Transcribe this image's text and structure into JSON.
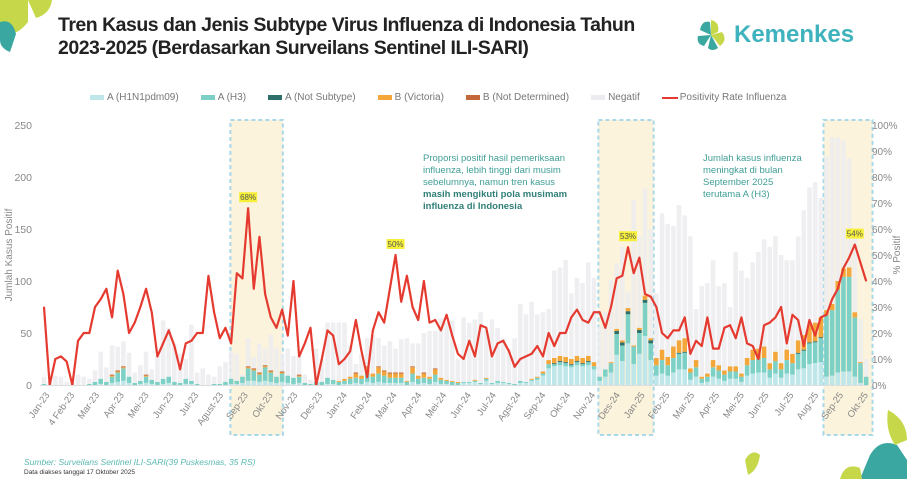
{
  "header": {
    "title_line1": "Tren Kasus dan Jenis Subtype Virus Influenza di Indonesia Tahun",
    "title_line2": "2023-2025 (Berdasarkan Surveilans Sentinel ILI-SARI)",
    "logo_text": "Kemenkes"
  },
  "colors": {
    "h1n1": "#bfe7ea",
    "h3": "#7dd0c5",
    "ans": "#2e6f6c",
    "bvic": "#f3a63a",
    "bnd": "#c2683a",
    "negatif": "#ececf0",
    "positivity": "#e53a2f",
    "highlight": "#fbf3dc",
    "highlight_border": "#a9d8ea",
    "label_bg": "#f6f03a"
  },
  "notes": {
    "left_normal": "Proporsi positif hasil pemeriksaan influenza, lebih tinggi dari musim sebelumnya, namun tren kasus",
    "left_bold": "masih mengikuti pola musimam influenza di Indonesia",
    "right": "Jumlah kasus influenza meningkat di bulan September 2025 terutama A (H3)"
  },
  "footer": {
    "source": "Sumber: Surveilans Sentinel ILI-SARI(39 Puskesmas, 35 RS)",
    "accessed": "Data diakses tanggal 17 Oktober 2025"
  },
  "chart_data": {
    "type": "bar",
    "stacked": true,
    "title": "",
    "xlabel": "",
    "ylabel": "Jumlah Kasus Positif",
    "y2label": "% Positif",
    "ylim": [
      0,
      250
    ],
    "y2lim": [
      0,
      100
    ],
    "yticks": [
      "0",
      "50",
      "100",
      "150",
      "200",
      "250"
    ],
    "y2ticks": [
      "0%",
      "10%",
      "20%",
      "30%",
      "40%",
      "50%",
      "60%",
      "70%",
      "80%",
      "90%",
      "100%"
    ],
    "grid": false,
    "legend_position": "top",
    "month_labels": [
      "Jan-23",
      "4 Feb-23",
      "Mar-23",
      "Apr-23",
      "Mei-23",
      "Jun-23",
      "Jul-23",
      "Agust-23",
      "Sep-23",
      "Okt-23",
      "Nov-23",
      "Des-23",
      "Jan-24",
      "Feb-24",
      "Mar-24",
      "Apr-24",
      "Mei-24",
      "Jun-24",
      "Jul-24",
      "Agst-24",
      "Sep-24",
      "Okt-24",
      "Nov-24",
      "Des-24",
      "Jan-25",
      "Feb-25",
      "Mar-25",
      "Apr-25",
      "Mei-25",
      "Jun-25",
      "Jul-25",
      "Aug-25",
      "Sep-25",
      "Okt-25"
    ],
    "peak_labels": [
      {
        "week": 36,
        "text": "68%"
      },
      {
        "week": 62,
        "text": "50%"
      },
      {
        "week": 103,
        "text": "53%"
      },
      {
        "week": 143,
        "text": "54%"
      }
    ],
    "series": [
      {
        "name": "A (H1N1pdm09)",
        "type": "bar",
        "values": [
          0,
          0,
          0,
          0,
          0,
          0,
          0,
          0,
          0,
          0,
          1,
          0,
          2,
          3,
          4,
          2,
          0,
          1,
          2,
          1,
          0,
          1,
          2,
          0,
          0,
          1,
          1,
          0,
          0,
          0,
          0,
          0,
          0,
          1,
          1,
          2,
          4,
          4,
          3,
          4,
          3,
          2,
          3,
          2,
          1,
          2,
          0,
          0,
          0,
          0,
          1,
          1,
          0,
          1,
          1,
          2,
          1,
          3,
          2,
          3,
          2,
          2,
          2,
          2,
          0,
          3,
          1,
          2,
          1,
          3,
          1,
          1,
          0,
          0,
          2,
          2,
          3,
          1,
          4,
          1,
          2,
          2,
          1,
          0,
          2,
          2,
          4,
          5,
          9,
          16,
          18,
          19,
          18,
          17,
          19,
          18,
          19,
          15,
          4,
          8,
          12,
          29,
          23,
          40,
          20,
          30,
          47,
          24,
          9,
          11,
          9,
          12,
          15,
          15,
          5,
          8,
          2,
          3,
          8,
          6,
          4,
          6,
          6,
          3,
          9,
          11,
          12,
          12,
          7,
          11,
          7,
          11,
          10,
          15,
          16,
          20,
          21,
          22,
          8,
          9,
          12,
          13,
          13,
          8,
          2,
          0
        ]
      },
      {
        "name": "A (H3)",
        "type": "bar",
        "values": [
          1,
          0,
          0,
          0,
          0,
          0,
          0,
          0,
          1,
          3,
          5,
          3,
          6,
          9,
          12,
          6,
          2,
          3,
          6,
          4,
          3,
          5,
          6,
          3,
          2,
          5,
          3,
          1,
          0,
          0,
          1,
          1,
          3,
          5,
          3,
          6,
          12,
          10,
          7,
          13,
          9,
          6,
          8,
          7,
          6,
          6,
          2,
          1,
          3,
          3,
          6,
          4,
          3,
          3,
          5,
          5,
          5,
          8,
          6,
          8,
          7,
          5,
          5,
          5,
          3,
          8,
          5,
          5,
          5,
          7,
          4,
          3,
          3,
          2,
          1,
          1,
          1,
          1,
          2,
          1,
          2,
          1,
          1,
          1,
          2,
          1,
          1,
          2,
          2,
          4,
          2,
          3,
          3,
          2,
          3,
          2,
          3,
          3,
          4,
          7,
          9,
          20,
          15,
          28,
          17,
          20,
          32,
          16,
          10,
          13,
          10,
          14,
          15,
          16,
          7,
          9,
          4,
          5,
          9,
          8,
          6,
          7,
          7,
          5,
          10,
          13,
          13,
          14,
          8,
          12,
          8,
          13,
          11,
          15,
          17,
          20,
          20,
          23,
          59,
          63,
          80,
          91,
          91,
          57,
          19,
          8
        ]
      },
      {
        "name": "A (Not Subtype)",
        "type": "bar",
        "values": [
          0,
          0,
          0,
          0,
          0,
          0,
          0,
          0,
          0,
          0,
          0,
          0,
          0,
          0,
          0,
          0,
          0,
          0,
          0,
          0,
          0,
          0,
          0,
          0,
          0,
          0,
          0,
          0,
          0,
          0,
          0,
          0,
          0,
          0,
          0,
          0,
          0,
          0,
          0,
          0,
          0,
          0,
          0,
          0,
          0,
          0,
          0,
          0,
          0,
          0,
          0,
          0,
          0,
          0,
          0,
          0,
          0,
          0,
          0,
          0,
          0,
          0,
          0,
          0,
          0,
          0,
          0,
          0,
          0,
          0,
          0,
          0,
          0,
          0,
          0,
          0,
          0,
          0,
          0,
          0,
          0,
          0,
          0,
          0,
          0,
          0,
          0,
          0,
          0,
          0,
          1,
          1,
          1,
          1,
          1,
          1,
          1,
          0,
          0,
          0,
          0,
          3,
          3,
          3,
          0,
          3,
          3,
          3,
          0,
          0,
          0,
          0,
          1,
          1,
          0,
          0,
          0,
          0,
          0,
          0,
          0,
          0,
          0,
          0,
          0,
          0,
          0,
          0,
          0,
          0,
          0,
          0,
          0,
          1,
          1,
          1,
          1,
          1,
          0,
          0,
          0,
          0,
          0,
          0,
          0,
          0
        ]
      },
      {
        "name": "B (Victoria)",
        "type": "bar",
        "values": [
          0,
          0,
          0,
          0,
          0,
          0,
          0,
          0,
          0,
          0,
          0,
          0,
          1,
          1,
          1,
          0,
          0,
          0,
          1,
          0,
          0,
          0,
          0,
          0,
          0,
          0,
          0,
          0,
          0,
          0,
          0,
          0,
          0,
          0,
          0,
          0,
          1,
          1,
          1,
          1,
          1,
          0,
          1,
          0,
          0,
          1,
          0,
          0,
          0,
          0,
          0,
          0,
          1,
          2,
          2,
          4,
          3,
          6,
          3,
          6,
          4,
          4,
          4,
          4,
          1,
          6,
          3,
          4,
          2,
          5,
          2,
          1,
          1,
          1,
          0,
          0,
          1,
          0,
          1,
          0,
          0,
          0,
          0,
          0,
          0,
          0,
          1,
          1,
          2,
          4,
          5,
          5,
          5,
          5,
          5,
          5,
          5,
          4,
          0,
          0,
          1,
          2,
          2,
          3,
          1,
          2,
          4,
          2,
          7,
          10,
          8,
          11,
          12,
          13,
          4,
          7,
          2,
          3,
          7,
          5,
          4,
          5,
          5,
          3,
          7,
          10,
          10,
          11,
          6,
          9,
          6,
          10,
          9,
          12,
          14,
          17,
          18,
          19,
          5,
          6,
          8,
          8,
          9,
          5,
          1,
          0
        ]
      },
      {
        "name": "B (Not Determined)",
        "type": "bar",
        "values": [
          0,
          0,
          0,
          0,
          0,
          0,
          0,
          0,
          0,
          0,
          0,
          0,
          1,
          1,
          1,
          0,
          0,
          0,
          1,
          0,
          0,
          0,
          0,
          0,
          0,
          0,
          0,
          0,
          0,
          0,
          0,
          0,
          0,
          0,
          0,
          0,
          1,
          1,
          1,
          1,
          1,
          0,
          1,
          0,
          0,
          1,
          0,
          0,
          0,
          0,
          0,
          0,
          0,
          0,
          0,
          1,
          0,
          1,
          0,
          1,
          1,
          1,
          1,
          1,
          0,
          1,
          0,
          1,
          0,
          1,
          0,
          0,
          0,
          0,
          0,
          0,
          0,
          0,
          0,
          0,
          0,
          0,
          0,
          0,
          0,
          0,
          0,
          0,
          0,
          0,
          0,
          0,
          0,
          0,
          0,
          0,
          0,
          0,
          0,
          0,
          0,
          0,
          0,
          0,
          0,
          0,
          0,
          0,
          0,
          0,
          0,
          0,
          0,
          0,
          0,
          0,
          0,
          0,
          0,
          0,
          0,
          0,
          0,
          0,
          0,
          0,
          0,
          0,
          0,
          0,
          0,
          0,
          0,
          0,
          0,
          0,
          0,
          0,
          0,
          0,
          0,
          0,
          0,
          0,
          0,
          0
        ]
      },
      {
        "name": "Negatif",
        "type": "bar",
        "values": [
          7,
          3,
          9,
          8,
          3,
          2,
          10,
          8,
          5,
          11,
          26,
          14,
          28,
          23,
          24,
          23,
          10,
          15,
          22,
          10,
          25,
          56,
          47,
          37,
          28,
          19,
          54,
          11,
          16,
          10,
          7,
          17,
          19,
          26,
          26,
          2,
          27,
          11,
          28,
          16,
          34,
          28,
          17,
          26,
          21,
          20,
          8,
          4,
          32,
          22,
          53,
          55,
          56,
          54,
          30,
          8,
          21,
          27,
          37,
          27,
          24,
          30,
          23,
          32,
          41,
          22,
          31,
          38,
          44,
          36,
          57,
          55,
          58,
          22,
          62,
          57,
          58,
          68,
          46,
          61,
          51,
          42,
          33,
          44,
          74,
          65,
          74,
          60,
          57,
          49,
          84,
          85,
          93,
          63,
          75,
          72,
          90,
          81,
          48,
          55,
          79,
          63,
          90,
          16,
          140,
          88,
          103,
          105,
          62,
          131,
          128,
          116,
          130,
          118,
          127,
          49,
          87,
          87,
          96,
          76,
          84,
          57,
          110,
          99,
          77,
          84,
          93,
          103,
          112,
          111,
          104,
          86,
          90,
          100,
          120,
          132,
          135,
          115,
          148,
          160,
          138,
          123,
          105,
          80,
          41,
          17
        ]
      },
      {
        "name": "Positivity Rate Influenza",
        "type": "line",
        "axis": "right",
        "values": [
          30,
          0,
          10,
          11,
          9,
          0,
          17,
          20,
          20,
          30,
          33,
          37,
          26,
          44,
          35,
          20,
          24,
          30,
          37,
          28,
          11,
          16,
          21,
          15,
          6,
          16,
          17,
          20,
          20,
          42,
          28,
          18,
          22,
          16,
          43,
          41,
          68,
          37,
          57,
          35,
          26,
          22,
          29,
          19,
          40,
          11,
          16,
          22,
          0,
          10,
          21,
          19,
          8,
          10,
          13,
          25,
          13,
          3,
          21,
          28,
          24,
          37,
          50,
          32,
          42,
          30,
          25,
          40,
          24,
          25,
          21,
          27,
          19,
          12,
          10,
          17,
          11,
          23,
          22,
          11,
          16,
          17,
          13,
          7,
          10,
          11,
          12,
          15,
          11,
          20,
          15,
          20,
          20,
          26,
          29,
          25,
          24,
          28,
          28,
          22,
          30,
          41,
          42,
          53,
          43,
          49,
          35,
          34,
          30,
          20,
          18,
          21,
          21,
          26,
          12,
          17,
          15,
          26,
          14,
          14,
          22,
          23,
          18,
          26,
          16,
          15,
          10,
          23,
          24,
          26,
          30,
          16,
          27,
          25,
          15,
          25,
          19,
          26,
          27,
          33,
          37,
          45,
          49,
          54,
          47,
          40
        ]
      }
    ]
  }
}
